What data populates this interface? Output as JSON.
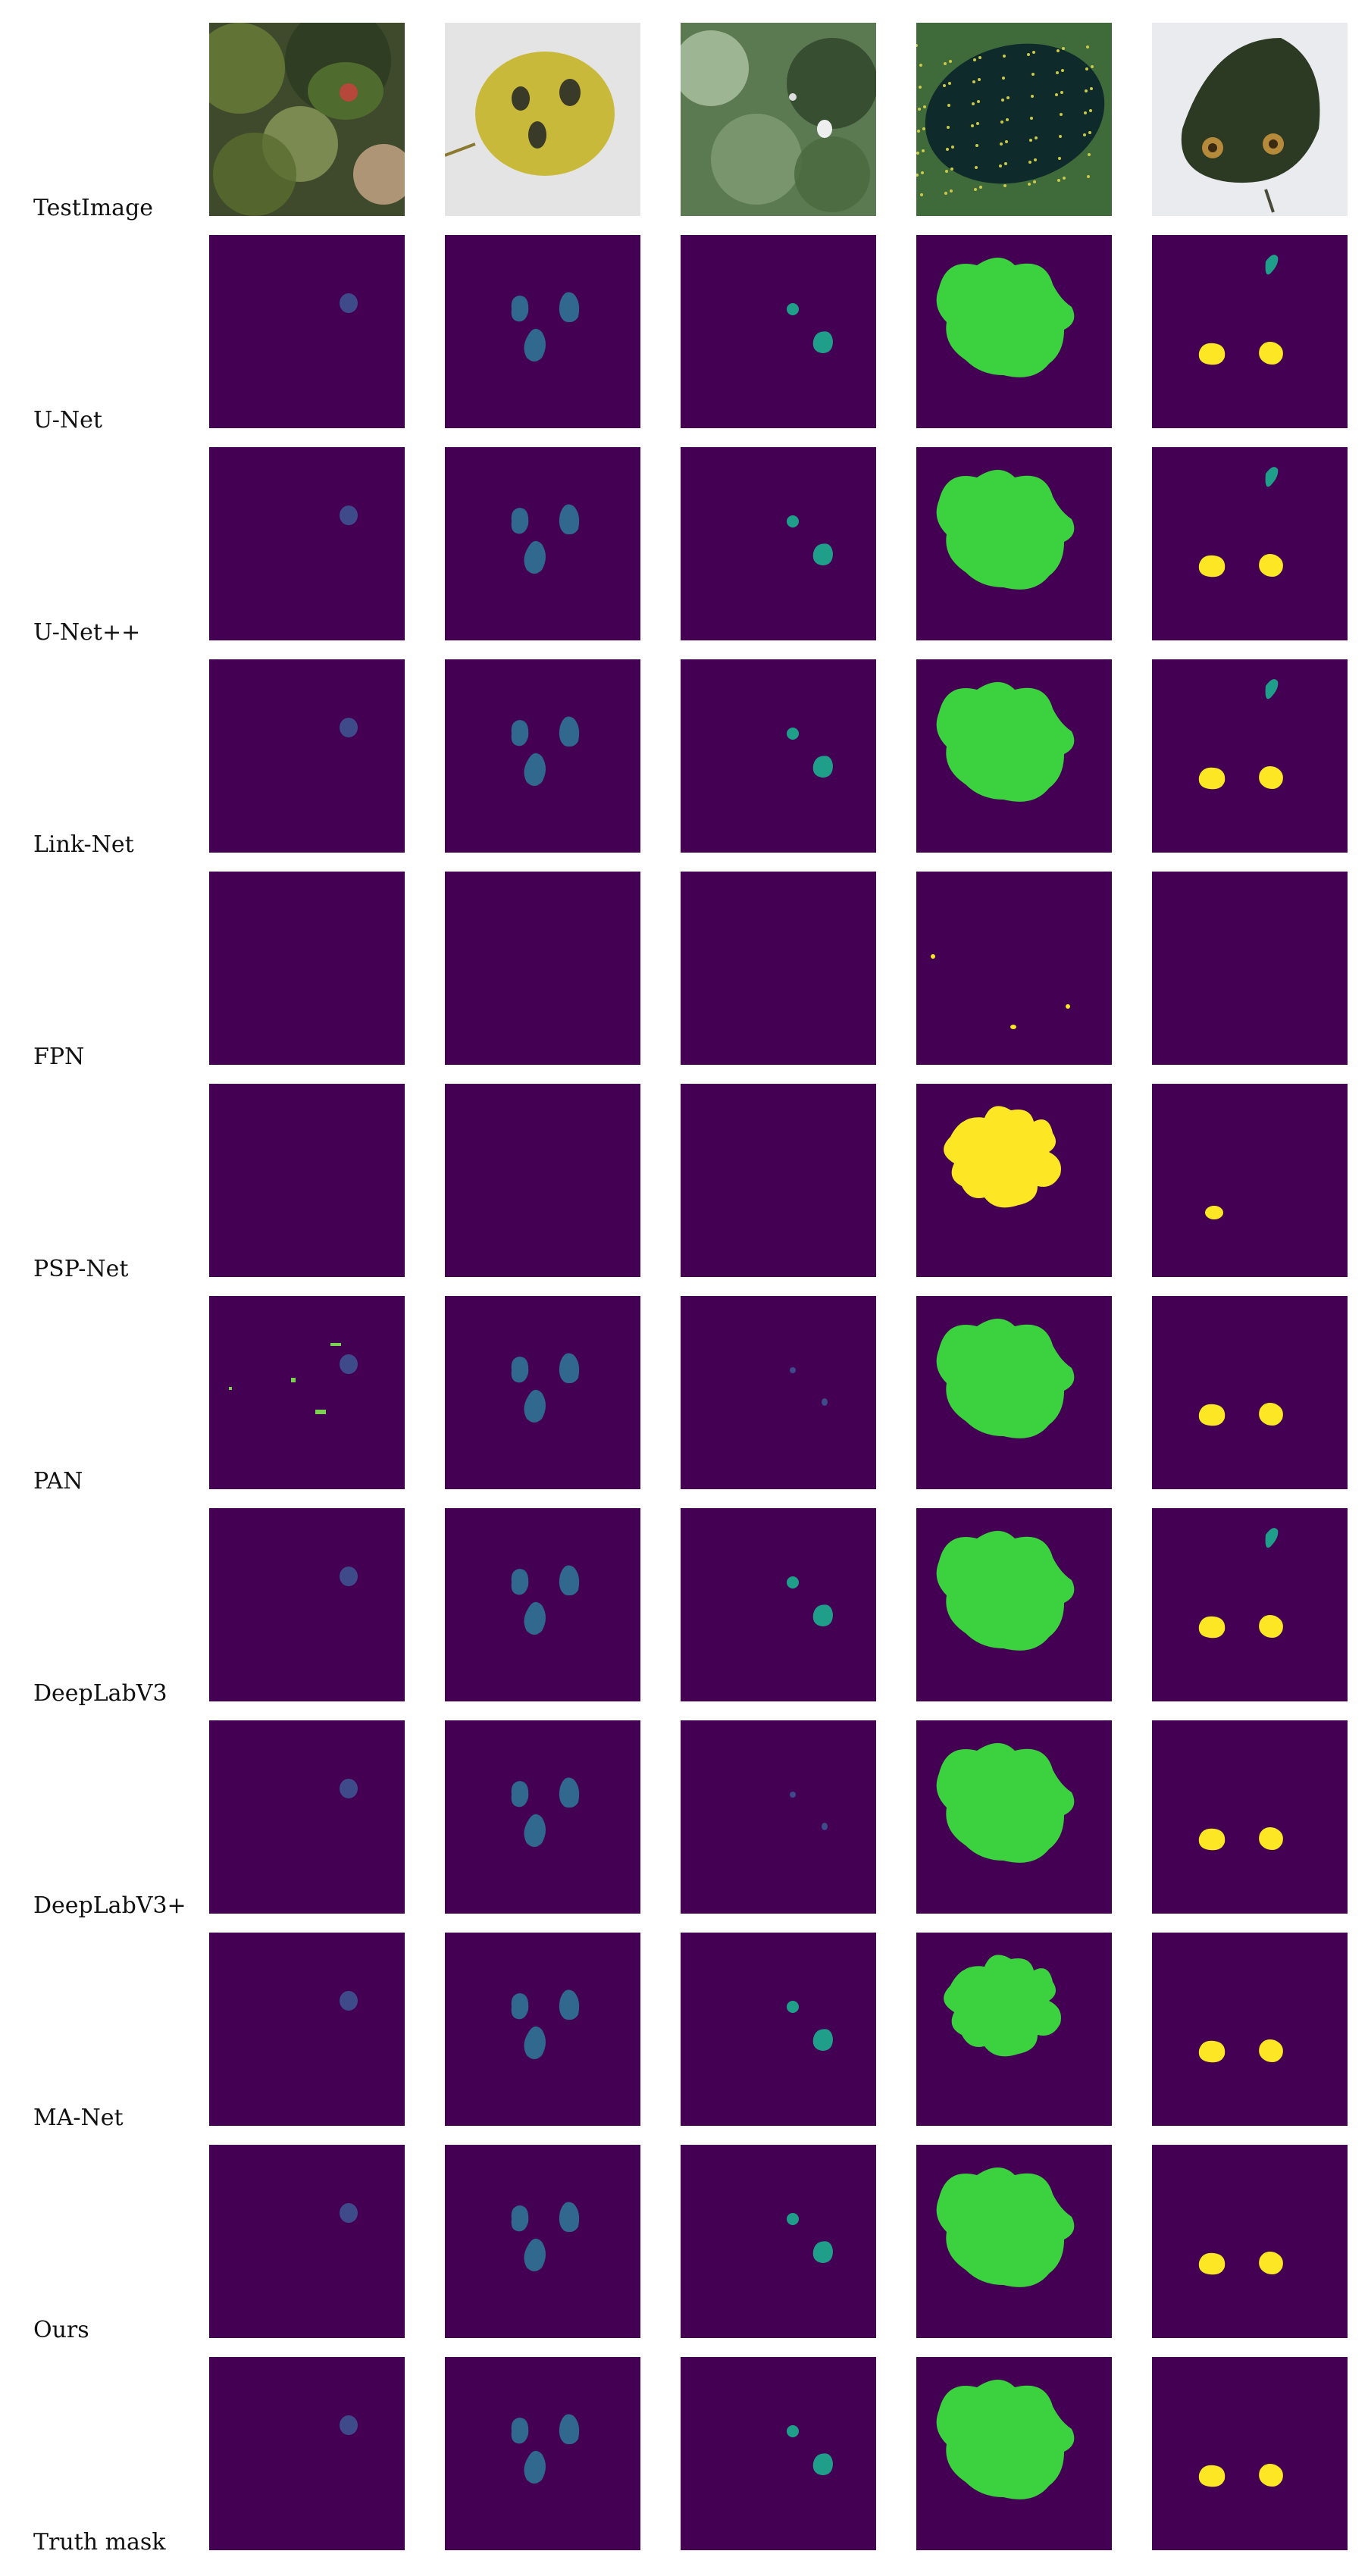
{
  "colors": {
    "background": "#440154",
    "class_teal": "#31688e",
    "class_cyan": "#1f9e89",
    "class_green": "#35b779",
    "class_bright_green": "#3bd13f",
    "class_yellow": "#fde725",
    "class_dark_blue": "#3e4a89",
    "class_lime": "#7ad151"
  },
  "columns": [
    "sample-1",
    "sample-2",
    "sample-3",
    "sample-4",
    "sample-5"
  ],
  "rows": [
    {
      "id": "test",
      "label": "TestImage"
    },
    {
      "id": "unet",
      "label": "U-Net"
    },
    {
      "id": "unetpp",
      "label": "U-Net++"
    },
    {
      "id": "linknet",
      "label": "Link-Net"
    },
    {
      "id": "fpn",
      "label": "FPN"
    },
    {
      "id": "pspnet",
      "label": "PSP-Net"
    },
    {
      "id": "pan",
      "label": "PAN"
    },
    {
      "id": "deeplabv3",
      "label": "DeepLabV3"
    },
    {
      "id": "deeplabv3plus",
      "label": "DeepLabV3+"
    },
    {
      "id": "manet",
      "label": "MA-Net"
    },
    {
      "id": "ours",
      "label": "Ours"
    },
    {
      "id": "truth",
      "label": "Truth mask"
    }
  ]
}
